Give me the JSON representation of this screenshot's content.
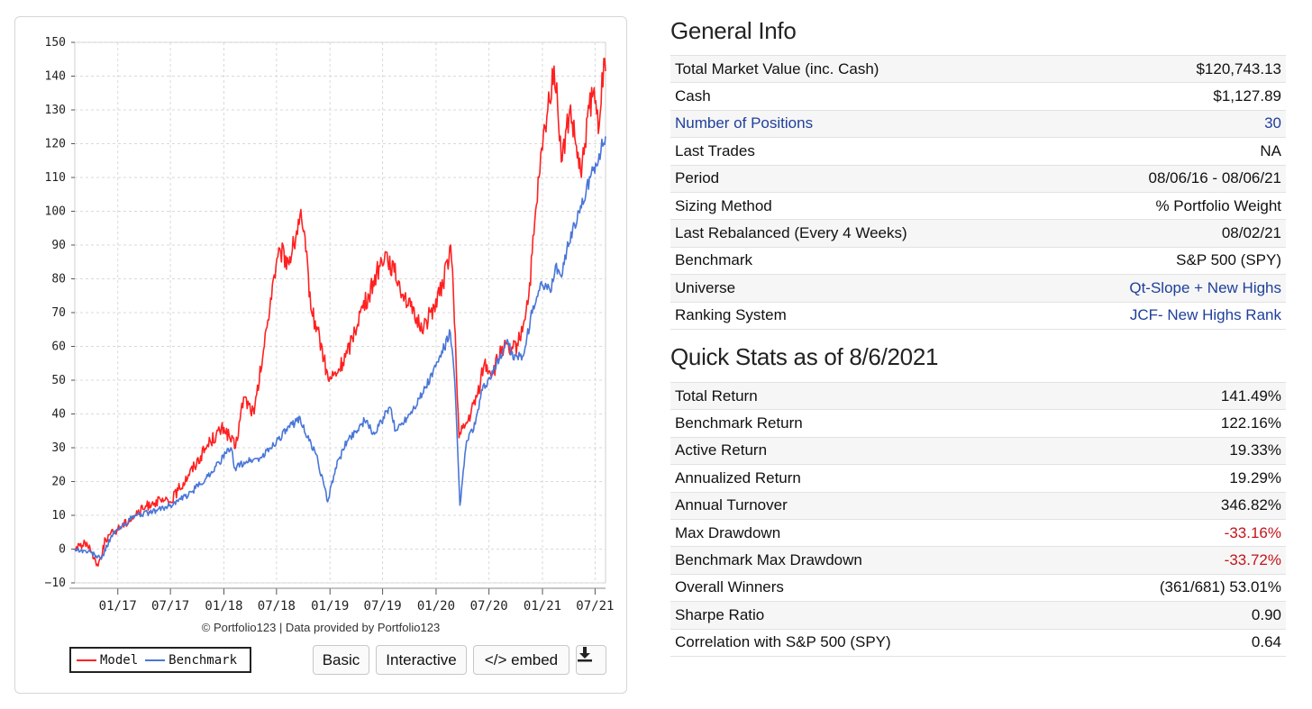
{
  "chart_data": {
    "type": "line",
    "ylim": [
      -10,
      150
    ],
    "yticks": [
      150,
      140,
      130,
      120,
      110,
      100,
      90,
      80,
      70,
      60,
      50,
      40,
      30,
      20,
      10,
      0,
      -10
    ],
    "xtick_labels": [
      "01/17",
      "07/17",
      "01/18",
      "07/18",
      "01/19",
      "07/19",
      "01/20",
      "07/20",
      "01/21",
      "07/21"
    ],
    "xtick_dates": [
      "2017-01-01",
      "2017-07-01",
      "2018-01-01",
      "2018-07-01",
      "2019-01-01",
      "2019-07-01",
      "2020-01-01",
      "2020-07-01",
      "2021-01-01",
      "2021-07-01"
    ],
    "xlim": [
      "2016-08-06",
      "2021-08-06"
    ],
    "grid": true,
    "legend_position": "bottom-left",
    "series": [
      {
        "name": "Model",
        "color": "#ff2020",
        "points": [
          [
            "2016-08-06",
            0
          ],
          [
            "2016-09-10",
            2
          ],
          [
            "2016-10-05",
            -1
          ],
          [
            "2016-10-25",
            -5
          ],
          [
            "2016-11-20",
            3
          ],
          [
            "2017-01-01",
            6
          ],
          [
            "2017-03-01",
            10
          ],
          [
            "2017-05-01",
            14
          ],
          [
            "2017-07-01",
            14
          ],
          [
            "2017-09-01",
            22
          ],
          [
            "2017-11-15",
            32
          ],
          [
            "2018-01-01",
            36
          ],
          [
            "2018-02-10",
            30
          ],
          [
            "2018-03-10",
            45
          ],
          [
            "2018-04-15",
            40
          ],
          [
            "2018-05-20",
            60
          ],
          [
            "2018-06-20",
            80
          ],
          [
            "2018-07-15",
            88
          ],
          [
            "2018-08-10",
            85
          ],
          [
            "2018-08-30",
            90
          ],
          [
            "2018-09-20",
            99
          ],
          [
            "2018-10-10",
            88
          ],
          [
            "2018-10-30",
            70
          ],
          [
            "2018-11-20",
            65
          ],
          [
            "2018-12-26",
            50
          ],
          [
            "2019-01-25",
            52
          ],
          [
            "2019-03-01",
            58
          ],
          [
            "2019-04-15",
            70
          ],
          [
            "2019-05-15",
            75
          ],
          [
            "2019-06-10",
            82
          ],
          [
            "2019-07-10",
            88
          ],
          [
            "2019-08-10",
            82
          ],
          [
            "2019-09-15",
            75
          ],
          [
            "2019-10-20",
            68
          ],
          [
            "2019-11-20",
            66
          ],
          [
            "2019-12-25",
            72
          ],
          [
            "2020-01-25",
            78
          ],
          [
            "2020-02-20",
            90
          ],
          [
            "2020-03-01",
            75
          ],
          [
            "2020-03-20",
            33
          ],
          [
            "2020-04-20",
            38
          ],
          [
            "2020-05-20",
            45
          ],
          [
            "2020-06-15",
            55
          ],
          [
            "2020-07-15",
            52
          ],
          [
            "2020-08-15",
            60
          ],
          [
            "2020-09-15",
            58
          ],
          [
            "2020-10-15",
            62
          ],
          [
            "2020-11-15",
            75
          ],
          [
            "2020-12-20",
            110
          ],
          [
            "2021-01-10",
            125
          ],
          [
            "2021-02-10",
            143
          ],
          [
            "2021-03-10",
            115
          ],
          [
            "2021-04-05",
            130
          ],
          [
            "2021-04-25",
            120
          ],
          [
            "2021-05-15",
            110
          ],
          [
            "2021-06-05",
            128
          ],
          [
            "2021-06-25",
            135
          ],
          [
            "2021-07-15",
            125
          ],
          [
            "2021-07-25",
            141
          ],
          [
            "2021-08-06",
            141.49
          ]
        ]
      },
      {
        "name": "Benchmark",
        "color": "#4a76d8",
        "points": [
          [
            "2016-08-06",
            0
          ],
          [
            "2016-10-01",
            -1
          ],
          [
            "2016-11-05",
            -3
          ],
          [
            "2016-12-10",
            4
          ],
          [
            "2017-03-01",
            10
          ],
          [
            "2017-05-01",
            11
          ],
          [
            "2017-07-01",
            13
          ],
          [
            "2017-09-01",
            16
          ],
          [
            "2017-11-01",
            21
          ],
          [
            "2018-01-25",
            30
          ],
          [
            "2018-02-08",
            24
          ],
          [
            "2018-03-20",
            26
          ],
          [
            "2018-05-10",
            27
          ],
          [
            "2018-07-01",
            32
          ],
          [
            "2018-08-15",
            36
          ],
          [
            "2018-09-20",
            39
          ],
          [
            "2018-10-15",
            33
          ],
          [
            "2018-11-15",
            28
          ],
          [
            "2018-12-24",
            14
          ],
          [
            "2019-01-20",
            24
          ],
          [
            "2019-03-01",
            32
          ],
          [
            "2019-04-30",
            38
          ],
          [
            "2019-06-03",
            34
          ],
          [
            "2019-07-25",
            42
          ],
          [
            "2019-08-15",
            35
          ],
          [
            "2019-10-01",
            40
          ],
          [
            "2019-11-15",
            46
          ],
          [
            "2019-12-31",
            54
          ],
          [
            "2020-02-19",
            64
          ],
          [
            "2020-03-05",
            50
          ],
          [
            "2020-03-23",
            13
          ],
          [
            "2020-04-15",
            32
          ],
          [
            "2020-05-15",
            37
          ],
          [
            "2020-06-08",
            47
          ],
          [
            "2020-07-15",
            52
          ],
          [
            "2020-09-02",
            62
          ],
          [
            "2020-09-25",
            56
          ],
          [
            "2020-10-30",
            58
          ],
          [
            "2020-11-30",
            72
          ],
          [
            "2020-12-31",
            78
          ],
          [
            "2021-01-29",
            76
          ],
          [
            "2021-02-15",
            84
          ],
          [
            "2021-03-05",
            81
          ],
          [
            "2021-04-15",
            95
          ],
          [
            "2021-05-15",
            101
          ],
          [
            "2021-06-15",
            110
          ],
          [
            "2021-07-15",
            117
          ],
          [
            "2021-08-06",
            122.16
          ]
        ]
      }
    ]
  },
  "chart_ui": {
    "credit": "© Portfolio123 | Data provided by Portfolio123",
    "legend_model": "Model",
    "legend_benchmark": "Benchmark",
    "btn_basic": "Basic",
    "btn_interactive": "Interactive",
    "btn_embed": "</> embed",
    "download_icon": "download-icon"
  },
  "general_info": {
    "title": "General Info",
    "rows": [
      {
        "label": "Total Market Value (inc. Cash)",
        "value": "$120,743.13"
      },
      {
        "label": "Cash",
        "value": "$1,127.89"
      },
      {
        "label": "Number of Positions",
        "value": "30"
      },
      {
        "label": "Last Trades",
        "value": "NA"
      },
      {
        "label": "Period",
        "value": "08/06/16 - 08/06/21"
      },
      {
        "label": "Sizing Method",
        "value": "% Portfolio Weight"
      },
      {
        "label": "Last Rebalanced (Every 4 Weeks)",
        "value": "08/02/21"
      },
      {
        "label": "Benchmark",
        "value": "S&P 500 (SPY)"
      },
      {
        "label": "Universe",
        "value": "Qt-Slope + New Highs"
      },
      {
        "label": "Ranking System",
        "value": "JCF- New Highs Rank"
      }
    ]
  },
  "quick_stats": {
    "title": "Quick Stats as of 8/6/2021",
    "rows": [
      {
        "label": "Total Return",
        "value": "141.49%"
      },
      {
        "label": "Benchmark Return",
        "value": "122.16%"
      },
      {
        "label": "Active Return",
        "value": "19.33%"
      },
      {
        "label": "Annualized Return",
        "value": "19.29%"
      },
      {
        "label": "Annual Turnover",
        "value": "346.82%"
      },
      {
        "label": "Max Drawdown",
        "value": "-33.16%"
      },
      {
        "label": "Benchmark Max Drawdown",
        "value": "-33.72%"
      },
      {
        "label": "Overall Winners",
        "value": "(361/681) 53.01%"
      },
      {
        "label": "Sharpe Ratio",
        "value": "0.90"
      },
      {
        "label": "Correlation with S&P 500 (SPY)",
        "value": "0.64"
      }
    ]
  },
  "colors": {
    "link": "#1f3f9a",
    "negative": "#c2151b",
    "model_line": "#ff2020",
    "benchmark_line": "#4a76d8"
  }
}
